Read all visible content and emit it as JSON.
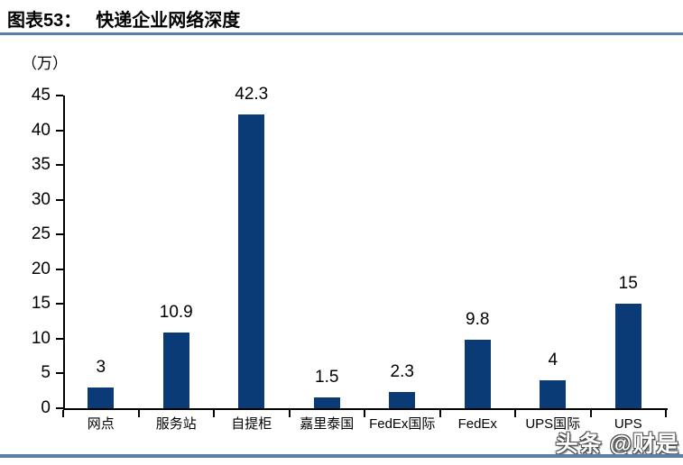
{
  "header": {
    "figure_label": "图表53：",
    "title": "快递企业网络深度"
  },
  "chart_data": {
    "type": "bar",
    "title": "快递企业网络深度",
    "unit_label": "（万）",
    "categories": [
      "网点",
      "服务站",
      "自提柜",
      "嘉里泰国",
      "FedEx国际",
      "FedEx",
      "UPS国际",
      "UPS"
    ],
    "values": [
      3,
      10.9,
      42.3,
      1.5,
      2.3,
      9.8,
      4,
      15
    ],
    "value_labels": [
      "3",
      "10.9",
      "42.3",
      "1.5",
      "2.3",
      "9.8",
      "4",
      "15"
    ],
    "xlabel": "",
    "ylabel": "（万）",
    "ylim": [
      0,
      45
    ],
    "ytick_step": 5,
    "yticks": [
      45,
      40,
      35,
      30,
      25,
      20,
      15,
      10,
      5,
      0
    ],
    "grid": false,
    "legend": "none",
    "bar_color": "#0B3B76"
  },
  "watermark": {
    "text": "头条 @财是"
  },
  "colors": {
    "bar": "#0B3B76",
    "rule": "#5B7FA6",
    "text": "#000000",
    "watermark_fill": "#FFFFFF"
  }
}
